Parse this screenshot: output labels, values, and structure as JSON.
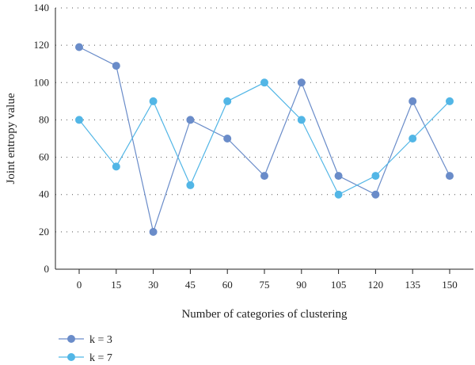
{
  "chart_data": {
    "type": "line",
    "title": "",
    "xlabel": "Number of categories of clustering",
    "ylabel": "Joint entropy value",
    "x": [
      0,
      15,
      30,
      45,
      60,
      75,
      90,
      105,
      120,
      135,
      150
    ],
    "x_tick_labels": [
      "0",
      "15",
      "30",
      "45",
      "60",
      "75",
      "90",
      "105",
      "120",
      "135",
      "150"
    ],
    "ylim": [
      0,
      140
    ],
    "y_ticks": [
      0,
      20,
      40,
      60,
      80,
      100,
      120,
      140
    ],
    "y_tick_labels": [
      "0",
      "20",
      "40",
      "60",
      "80",
      "100",
      "120",
      "140"
    ],
    "grid": "horizontal dotted",
    "legend_position": "bottom-left",
    "series": [
      {
        "name": "k = 3",
        "color": "#6a8cc9",
        "values": [
          119,
          109,
          20,
          80,
          70,
          50,
          100,
          50,
          40,
          90,
          50
        ]
      },
      {
        "name": "k = 7",
        "color": "#52b6e6",
        "values": [
          80,
          55,
          90,
          45,
          90,
          100,
          80,
          40,
          50,
          70,
          90
        ]
      }
    ]
  }
}
